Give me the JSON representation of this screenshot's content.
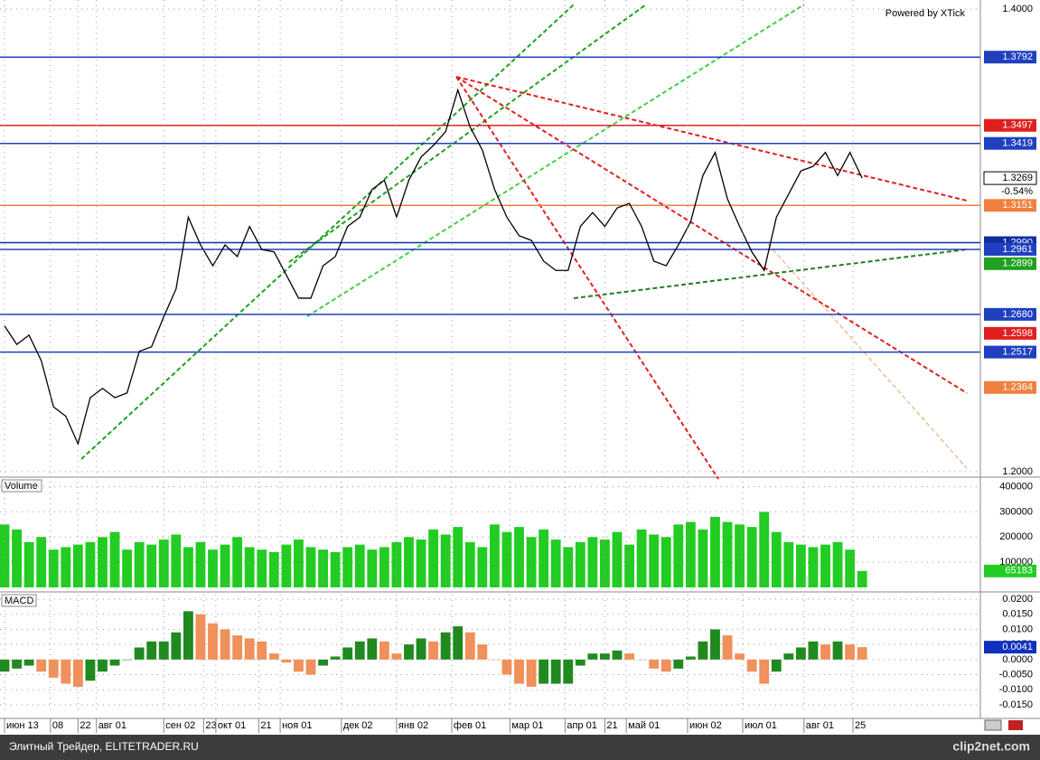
{
  "chart_data": [
    {
      "type": "line",
      "attribution": "Powered by XTick",
      "color": "#000000",
      "grid": true,
      "x": [
        0,
        4,
        8,
        12,
        16,
        20,
        24,
        28,
        32,
        36,
        40,
        44,
        48,
        52,
        56,
        60,
        64,
        68,
        72,
        76,
        80,
        84,
        88,
        92,
        96,
        100,
        104,
        108,
        112,
        116,
        120,
        124,
        128,
        132,
        136,
        140,
        144,
        148,
        152,
        156,
        160,
        164,
        168,
        172,
        176,
        180,
        184,
        188,
        192,
        196,
        200,
        204,
        208,
        212,
        216,
        220,
        224,
        228,
        232,
        236,
        240,
        244,
        248,
        252,
        256,
        260,
        264,
        268,
        272,
        276,
        280
      ],
      "values": [
        1.263,
        1.255,
        1.259,
        1.248,
        1.228,
        1.224,
        1.212,
        1.232,
        1.236,
        1.232,
        1.234,
        1.252,
        1.254,
        1.267,
        1.279,
        1.31,
        1.298,
        1.289,
        1.298,
        1.293,
        1.306,
        1.296,
        1.295,
        1.285,
        1.275,
        1.275,
        1.289,
        1.293,
        1.306,
        1.31,
        1.322,
        1.326,
        1.31,
        1.326,
        1.336,
        1.341,
        1.347,
        1.365,
        1.349,
        1.339,
        1.322,
        1.31,
        1.302,
        1.3,
        1.291,
        1.287,
        1.287,
        1.306,
        1.312,
        1.306,
        1.314,
        1.316,
        1.306,
        1.291,
        1.289,
        1.298,
        1.308,
        1.328,
        1.338,
        1.318,
        1.306,
        1.295,
        1.287,
        1.31,
        1.32,
        1.33,
        1.332,
        1.338,
        1.328,
        1.338,
        1.3269
      ],
      "xlim": [
        0,
        318
      ],
      "ylim": [
        1.1988,
        1.4039
      ],
      "yticks": [
        {
          "value": 1.4,
          "label": "1.4000"
        },
        {
          "value": 1.2,
          "label": "1.2000"
        }
      ],
      "levels": [
        {
          "value": 1.3792,
          "label": "1.3792",
          "color": "#2040c0",
          "line": true
        },
        {
          "value": 1.3497,
          "label": "1.3497",
          "color": "#e02020",
          "line": true
        },
        {
          "value": 1.3419,
          "label": "1.3419",
          "color": "#2040c0",
          "line": true
        },
        {
          "value": 1.3151,
          "label": "1.3151",
          "color": "#f08040",
          "line": true
        },
        {
          "value": 1.299,
          "label": "1.2990",
          "color": "#1030a0",
          "line": true
        },
        {
          "value": 1.2961,
          "label": "1.2961",
          "color": "#2040c0",
          "line": true
        },
        {
          "value": 1.2899,
          "label": "1.2899",
          "color": "#20a020",
          "line": false
        },
        {
          "value": 1.268,
          "label": "1.2680",
          "color": "#2040c0",
          "line": true
        },
        {
          "value": 1.2598,
          "label": "1.2598",
          "color": "#e02020",
          "line": false
        },
        {
          "value": 1.2517,
          "label": "1.2517",
          "color": "#2040c0",
          "line": true
        },
        {
          "value": 1.2364,
          "label": "1.2364",
          "color": "#f08040",
          "line": false
        }
      ],
      "last": {
        "value": 1.3269,
        "label": "1.3269",
        "change": "-0.54%"
      }
    },
    {
      "type": "bar",
      "title": "Volume",
      "color": "#22cc22",
      "grid": true,
      "x": [
        0,
        4,
        8,
        12,
        16,
        20,
        24,
        28,
        32,
        36,
        40,
        44,
        48,
        52,
        56,
        60,
        64,
        68,
        72,
        76,
        80,
        84,
        88,
        92,
        96,
        100,
        104,
        108,
        112,
        116,
        120,
        124,
        128,
        132,
        136,
        140,
        144,
        148,
        152,
        156,
        160,
        164,
        168,
        172,
        176,
        180,
        184,
        188,
        192,
        196,
        200,
        204,
        208,
        212,
        216,
        220,
        224,
        228,
        232,
        236,
        240,
        244,
        248,
        252,
        256,
        260,
        264,
        268,
        272,
        276,
        280
      ],
      "values": [
        250000,
        230000,
        180000,
        200000,
        150000,
        160000,
        170000,
        180000,
        200000,
        220000,
        150000,
        180000,
        170000,
        190000,
        210000,
        160000,
        180000,
        150000,
        170000,
        200000,
        160000,
        150000,
        140000,
        170000,
        190000,
        160000,
        150000,
        140000,
        160000,
        170000,
        150000,
        160000,
        180000,
        200000,
        190000,
        230000,
        210000,
        240000,
        180000,
        160000,
        250000,
        220000,
        240000,
        200000,
        230000,
        190000,
        160000,
        180000,
        200000,
        190000,
        220000,
        170000,
        230000,
        210000,
        200000,
        250000,
        260000,
        230000,
        280000,
        260000,
        250000,
        240000,
        300000,
        220000,
        180000,
        170000,
        160000,
        170000,
        180000,
        150000,
        65183
      ],
      "xlim": [
        0,
        318
      ],
      "ylim": [
        0,
        420000
      ],
      "yticks": [
        100000,
        200000,
        300000,
        400000
      ],
      "last_label": "65183"
    },
    {
      "type": "bar",
      "title": "MACD",
      "up_color": "#208a20",
      "down_color": "#f0905a",
      "grid": true,
      "x": [
        0,
        4,
        8,
        12,
        16,
        20,
        24,
        28,
        32,
        36,
        40,
        44,
        48,
        52,
        56,
        60,
        64,
        68,
        72,
        76,
        80,
        84,
        88,
        92,
        96,
        100,
        104,
        108,
        112,
        116,
        120,
        124,
        128,
        132,
        136,
        140,
        144,
        148,
        152,
        156,
        160,
        164,
        168,
        172,
        176,
        180,
        184,
        188,
        192,
        196,
        200,
        204,
        208,
        212,
        216,
        220,
        224,
        228,
        232,
        236,
        240,
        244,
        248,
        252,
        256,
        260,
        264,
        268,
        272,
        276,
        280
      ],
      "values": [
        -0.004,
        -0.003,
        -0.002,
        -0.004,
        -0.006,
        -0.008,
        -0.009,
        -0.007,
        -0.004,
        -0.002,
        0.0,
        0.004,
        0.006,
        0.006,
        0.009,
        0.016,
        0.015,
        0.012,
        0.01,
        0.008,
        0.007,
        0.006,
        0.002,
        -0.001,
        -0.004,
        -0.005,
        -0.002,
        0.001,
        0.004,
        0.006,
        0.007,
        0.006,
        0.002,
        0.005,
        0.007,
        0.006,
        0.009,
        0.011,
        0.009,
        0.005,
        0.0,
        -0.005,
        -0.008,
        -0.009,
        -0.008,
        -0.008,
        -0.008,
        -0.002,
        0.002,
        0.002,
        0.003,
        0.002,
        0.0,
        -0.003,
        -0.004,
        -0.003,
        0.001,
        0.006,
        0.01,
        0.008,
        0.002,
        -0.004,
        -0.008,
        -0.004,
        0.002,
        0.004,
        0.006,
        0.005,
        0.006,
        0.005,
        0.0041
      ],
      "xlim": [
        0,
        318
      ],
      "ylim": [
        -0.018,
        0.0215
      ],
      "yticks": [
        {
          "value": 0.02,
          "label": "0.0200"
        },
        {
          "value": 0.015,
          "label": "0.0150"
        },
        {
          "value": 0.01,
          "label": "0.0100"
        },
        {
          "value": 0.005,
          "label": "0.0050"
        },
        {
          "value": 0,
          "label": "0.0000"
        },
        {
          "value": -0.005,
          "label": "-0.0050"
        },
        {
          "value": -0.01,
          "label": "-0.0100"
        },
        {
          "value": -0.015,
          "label": "-0.0150"
        }
      ],
      "last_label": "0.0041",
      "xticks": [
        {
          "value": 0,
          "label": "июн 13"
        },
        {
          "value": 15,
          "label": "08"
        },
        {
          "value": 24,
          "label": "22"
        },
        {
          "value": 30,
          "label": "авг 01"
        },
        {
          "value": 52,
          "label": "сен 02"
        },
        {
          "value": 65,
          "label": "23"
        },
        {
          "value": 69,
          "label": "окт 01"
        },
        {
          "value": 83,
          "label": "21"
        },
        {
          "value": 90,
          "label": "ноя 01"
        },
        {
          "value": 110,
          "label": "дек 02"
        },
        {
          "value": 128,
          "label": "янв 02"
        },
        {
          "value": 146,
          "label": "фев 01"
        },
        {
          "value": 165,
          "label": "мар 01"
        },
        {
          "value": 183,
          "label": "апр 01"
        },
        {
          "value": 196,
          "label": "21"
        },
        {
          "value": 203,
          "label": "май 01"
        },
        {
          "value": 223,
          "label": "июн 02"
        },
        {
          "value": 241,
          "label": "июл 01"
        },
        {
          "value": 261,
          "label": "авг 01"
        },
        {
          "value": 277,
          "label": "25"
        }
      ]
    }
  ],
  "footer": {
    "left": "Элитный Трейдер, ELITETRADER.RU",
    "right": "clip2net.com"
  }
}
